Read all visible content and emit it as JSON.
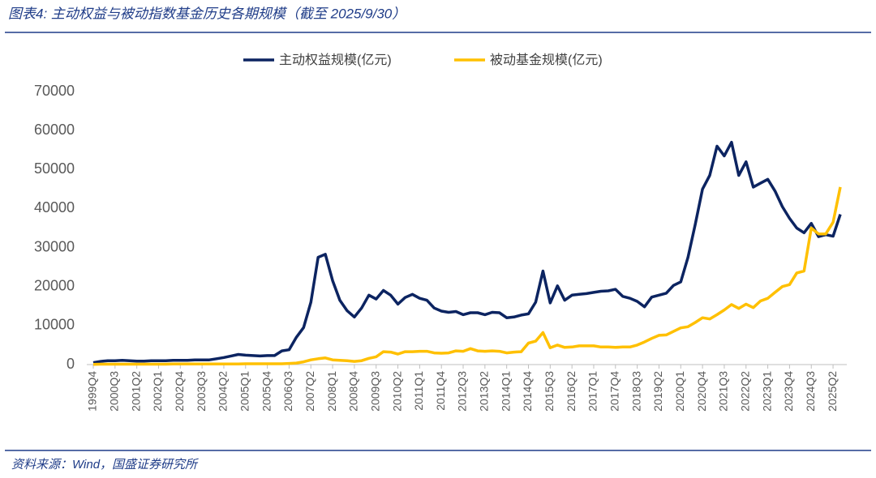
{
  "chart_data": {
    "type": "line",
    "title": "图表4: 主动权益与被动指数基金历史各期规模（截至 2025/9/30）",
    "source": "资料来源：Wind，国盛证券研究所",
    "legend": "top",
    "categories": [
      "1999Q4",
      null,
      null,
      "2000Q3",
      null,
      null,
      "2001Q2",
      null,
      null,
      "2002Q1",
      null,
      null,
      "2002Q4",
      null,
      null,
      "2003Q3",
      null,
      null,
      "2004Q2",
      null,
      null,
      "2005Q1",
      null,
      null,
      "2005Q4",
      null,
      null,
      "2006Q3",
      null,
      null,
      "2007Q2",
      null,
      null,
      "2008Q1",
      null,
      null,
      "2008Q4",
      null,
      null,
      "2009Q3",
      null,
      null,
      "2010Q2",
      null,
      null,
      "2011Q1",
      null,
      null,
      "2011Q4",
      null,
      null,
      "2012Q3",
      null,
      null,
      "2013Q2",
      null,
      null,
      "2014Q1",
      null,
      null,
      "2014Q4",
      null,
      null,
      "2015Q3",
      null,
      null,
      "2016Q2",
      null,
      null,
      "2017Q1",
      null,
      null,
      "2017Q4",
      null,
      null,
      "2018Q3",
      null,
      null,
      "2019Q2",
      null,
      null,
      "2020Q1",
      null,
      null,
      "2020Q4",
      null,
      null,
      "2021Q3",
      null,
      null,
      "2022Q2",
      null,
      null,
      "2023Q1",
      null,
      null,
      "2023Q4",
      null,
      null,
      "2024Q3",
      null,
      null,
      "2025Q2",
      null
    ],
    "series": [
      {
        "name": "主动权益规模(亿元)",
        "color": "#0c2461",
        "values": [
          500,
          800,
          1000,
          1000,
          1100,
          1000,
          900,
          900,
          1000,
          1000,
          1000,
          1100,
          1100,
          1100,
          1200,
          1200,
          1200,
          1500,
          1800,
          2200,
          2600,
          2400,
          2300,
          2200,
          2300,
          2300,
          3500,
          3800,
          7000,
          9500,
          16000,
          27500,
          28300,
          21500,
          16500,
          13800,
          12200,
          14500,
          17800,
          16800,
          19000,
          17800,
          15500,
          17200,
          18000,
          17000,
          16500,
          14500,
          13700,
          13400,
          13600,
          12800,
          13300,
          13300,
          12800,
          13400,
          13300,
          12000,
          12200,
          12700,
          13000,
          16000,
          24000,
          15800,
          20200,
          16500,
          17800,
          18000,
          18200,
          18500,
          18800,
          18900,
          19300,
          17500,
          17000,
          16200,
          14800,
          17300,
          17800,
          18300,
          20300,
          21200,
          27500,
          36000,
          45000,
          48500,
          56000,
          53500,
          57000,
          48500,
          52000,
          45500,
          46500,
          47500,
          44500,
          40500,
          37500,
          35000,
          33800,
          36200,
          32800,
          33300,
          32900,
          38500
        ]
      },
      {
        "name": "被动基金规模(亿元)",
        "color": "#ffc000",
        "values": [
          50,
          100,
          100,
          100,
          100,
          100,
          100,
          100,
          100,
          100,
          100,
          150,
          150,
          150,
          150,
          150,
          150,
          150,
          150,
          150,
          150,
          200,
          200,
          200,
          200,
          200,
          200,
          300,
          400,
          700,
          1200,
          1500,
          1700,
          1200,
          1100,
          1000,
          800,
          1000,
          1600,
          2000,
          3300,
          3200,
          2700,
          3300,
          3300,
          3400,
          3400,
          3000,
          2900,
          3000,
          3500,
          3400,
          4100,
          3500,
          3400,
          3500,
          3400,
          3000,
          3200,
          3300,
          5500,
          6000,
          8200,
          4300,
          5000,
          4400,
          4500,
          4800,
          4800,
          4800,
          4500,
          4500,
          4400,
          4500,
          4500,
          5000,
          5800,
          6700,
          7500,
          7600,
          8500,
          9400,
          9700,
          10800,
          12000,
          11700,
          12800,
          14000,
          15400,
          14400,
          15500,
          14600,
          16300,
          17000,
          18500,
          20000,
          20500,
          23500,
          24000,
          35000,
          33500,
          33500,
          36500,
          45500
        ]
      }
    ],
    "ylim": [
      0,
      70000
    ],
    "yticks": [
      0,
      10000,
      20000,
      30000,
      40000,
      50000,
      60000,
      70000
    ]
  }
}
